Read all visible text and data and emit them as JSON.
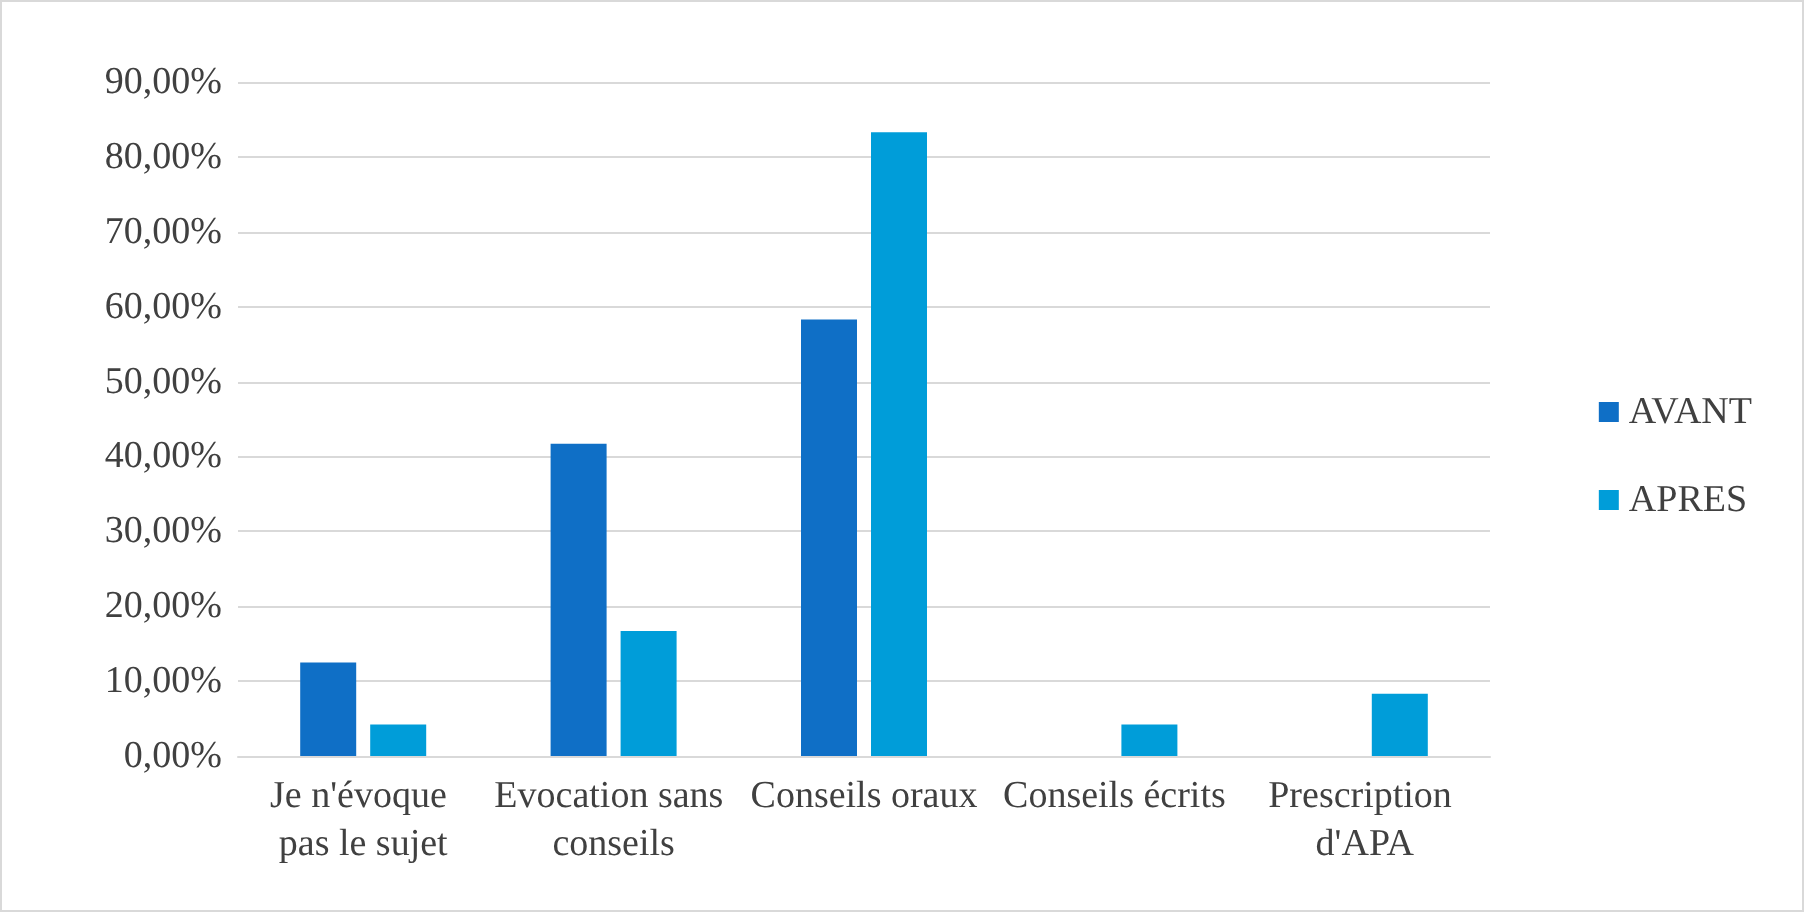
{
  "chart_data": {
    "type": "bar",
    "categories": [
      "Je n'évoque pas le sujet",
      "Evocation sans conseils",
      "Conseils oraux",
      "Conseils écrits",
      "Prescription d'APA"
    ],
    "series": [
      {
        "name": "AVANT",
        "color": "#0f6fc6",
        "values": [
          12.5,
          41.7,
          58.3,
          0,
          0
        ]
      },
      {
        "name": "APRES",
        "color": "#009dd9",
        "values": [
          4.2,
          16.7,
          83.3,
          4.2,
          8.3
        ]
      }
    ],
    "ylim": [
      0,
      90
    ],
    "yticks": [
      {
        "value": 0,
        "label": "0,00%"
      },
      {
        "value": 10,
        "label": "10,00%"
      },
      {
        "value": 20,
        "label": "20,00%"
      },
      {
        "value": 30,
        "label": "30,00%"
      },
      {
        "value": 40,
        "label": "40,00%"
      },
      {
        "value": 50,
        "label": "50,00%"
      },
      {
        "value": 60,
        "label": "60,00%"
      },
      {
        "value": 70,
        "label": "70,00%"
      },
      {
        "value": 80,
        "label": "80,00%"
      },
      {
        "value": 90,
        "label": "90,00%"
      }
    ],
    "grid": "y",
    "legend": "right"
  }
}
